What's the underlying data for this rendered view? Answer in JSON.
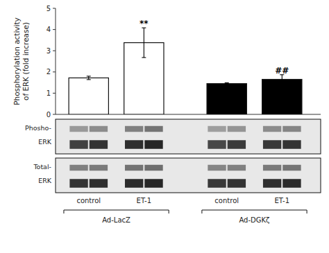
{
  "chart_data": {
    "type": "bar",
    "ylabel": "Phosphorylation activity\nof ERK (fold increase)",
    "categories": [
      "control",
      "ET-1"
    ],
    "series": [
      {
        "name": "Ad-LacZ",
        "color": "white",
        "values": [
          1.72,
          3.38
        ],
        "errors": [
          0.08,
          0.7
        ],
        "annotations": [
          null,
          {
            "text": "**",
            "y": 4.15
          }
        ]
      },
      {
        "name": "Ad-DGKζ",
        "color": "black",
        "values": [
          1.45,
          1.65
        ],
        "errors": [
          0.04,
          0.22
        ],
        "annotations": [
          null,
          {
            "text": "##",
            "y": 1.92
          }
        ]
      }
    ],
    "ylim": [
      0,
      5
    ],
    "yticks": [
      0,
      1,
      2,
      3,
      4,
      5
    ],
    "blot_background": "#e8e8e8",
    "blots": [
      {
        "label": [
          "Phosho-",
          "ERK"
        ],
        "top_bands": [
          0.6,
          0.55,
          0.5,
          0.45,
          0.62,
          0.58,
          0.55,
          0.52
        ],
        "bottom_bands": [
          0.25,
          0.2,
          0.18,
          0.15,
          0.28,
          0.23,
          0.22,
          0.2
        ]
      },
      {
        "label": [
          "Total-",
          "ERK"
        ],
        "top_bands": [
          0.5,
          0.48,
          0.45,
          0.43,
          0.52,
          0.5,
          0.48,
          0.46
        ],
        "bottom_bands": [
          0.2,
          0.18,
          0.17,
          0.15,
          0.22,
          0.2,
          0.18,
          0.17
        ]
      }
    ]
  }
}
